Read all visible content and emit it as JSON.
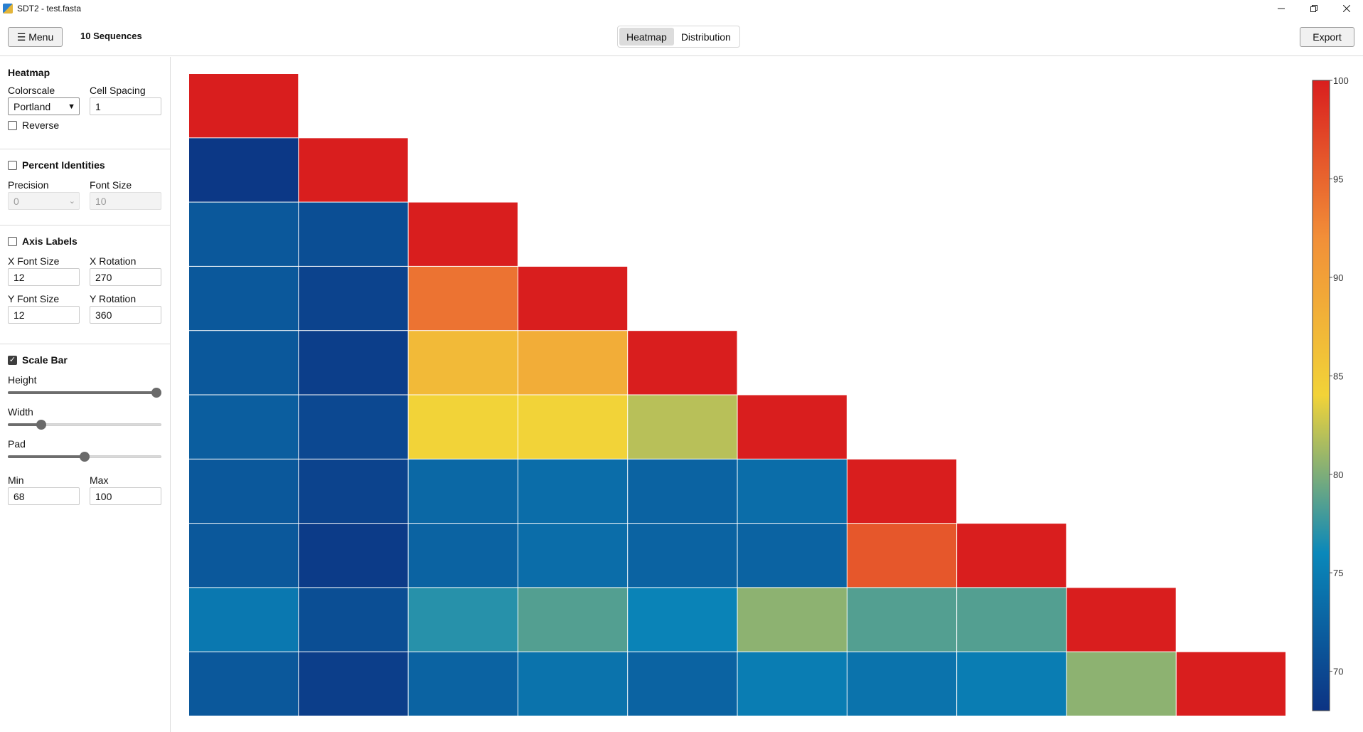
{
  "window": {
    "title": "SDT2 - test.fasta",
    "minimize_icon": "minimize-icon",
    "maximize_icon": "restore-icon",
    "close_icon": "close-icon"
  },
  "header": {
    "menu_label": "☰ Menu",
    "sequence_count": "10 Sequences",
    "tabs": [
      {
        "label": "Heatmap",
        "active": true
      },
      {
        "label": "Distribution",
        "active": false
      }
    ],
    "export_label": "Export"
  },
  "sidebar": {
    "heatmap": {
      "title": "Heatmap",
      "colorscale_label": "Colorscale",
      "colorscale_value": "Portland",
      "cell_spacing_label": "Cell Spacing",
      "cell_spacing_value": "1",
      "reverse_label": "Reverse",
      "reverse_checked": false
    },
    "percent": {
      "title": "Percent Identities",
      "checked": false,
      "precision_label": "Precision",
      "precision_value": "0",
      "font_size_label": "Font Size",
      "font_size_value": "10"
    },
    "axis": {
      "title": "Axis Labels",
      "checked": false,
      "x_font_size_label": "X Font Size",
      "x_font_size_value": "12",
      "x_rotation_label": "X Rotation",
      "x_rotation_value": "270",
      "y_font_size_label": "Y Font Size",
      "y_font_size_value": "12",
      "y_rotation_label": "Y Rotation",
      "y_rotation_value": "360"
    },
    "scale_bar": {
      "title": "Scale Bar",
      "checked": true,
      "height_label": "Height",
      "height_level": 1.0,
      "width_label": "Width",
      "width_level": 0.2,
      "pad_label": "Pad",
      "pad_level": 0.5,
      "min_label": "Min",
      "min_value": "68",
      "max_label": "Max",
      "max_value": "100"
    }
  },
  "chart_data": {
    "type": "heatmap",
    "layout": "lower-triangle",
    "colorscale": "Portland",
    "zmin": 68,
    "zmax": 100,
    "colorbar_ticks": [
      "100",
      "95",
      "90",
      "85",
      "80",
      "75",
      "70"
    ],
    "colorbar_tick_values": [
      100,
      95,
      90,
      85,
      80,
      75,
      70
    ],
    "matrix": [
      [
        100
      ],
      [
        68.5,
        100
      ],
      [
        71.5,
        70.5,
        100
      ],
      [
        71.5,
        69.5,
        94,
        100
      ],
      [
        71.5,
        69,
        87,
        88.5,
        100
      ],
      [
        72,
        70,
        84,
        84,
        82,
        100
      ],
      [
        71.5,
        69.5,
        73,
        73.5,
        72.5,
        73.5,
        100
      ],
      [
        71.5,
        68.8,
        72.5,
        73.5,
        72.5,
        72.5,
        96,
        100
      ],
      [
        74.5,
        70.5,
        77,
        78.5,
        75.5,
        80.5,
        78.5,
        78.5,
        100
      ],
      [
        71.5,
        69,
        72.5,
        74,
        72.5,
        75,
        74,
        75,
        80.5,
        100
      ]
    ],
    "colors": {
      "stops": [
        [
          0.0,
          "#0c3383"
        ],
        [
          0.25,
          "#0a88ba"
        ],
        [
          0.5,
          "#f2d338"
        ],
        [
          0.75,
          "#f28f38"
        ],
        [
          1.0,
          "#d91e1e"
        ]
      ]
    }
  }
}
